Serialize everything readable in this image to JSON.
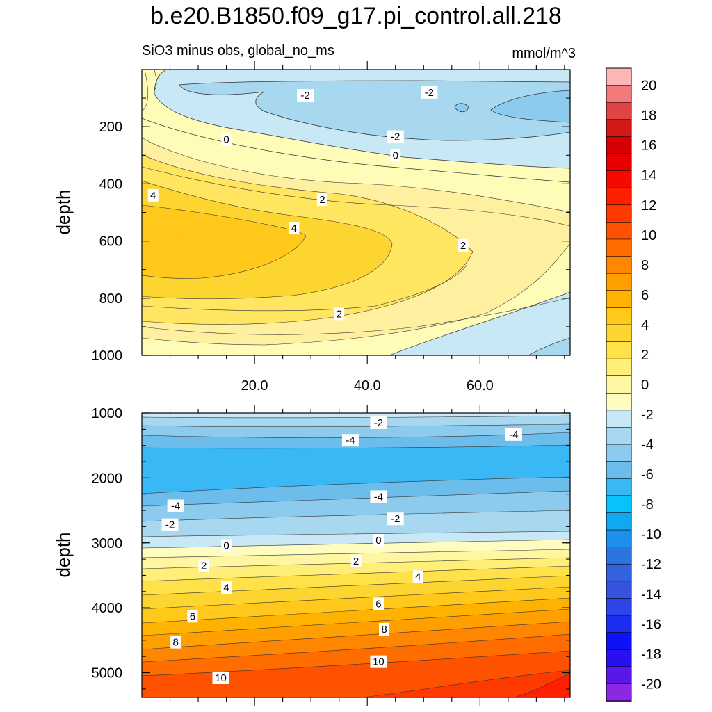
{
  "title": "b.e20.B1850.f09_g17.pi_control.all.218",
  "subtitle": "SiO3 minus obs, global_no_ms",
  "units": "mmol/m^3",
  "chart_data": [
    {
      "type": "contour",
      "panel": "upper",
      "variable": "SiO3 minus obs",
      "ylabel": "depth",
      "xlabel": "",
      "x_ticks": [
        20.0,
        40.0,
        60.0
      ],
      "x_tick_labels": [
        "20.0",
        "40.0",
        "60.0"
      ],
      "xlim": [
        0,
        76
      ],
      "ylim": [
        0,
        1000
      ],
      "y_ticks": [
        200,
        400,
        600,
        800,
        1000
      ],
      "y_tick_labels": [
        "200",
        "400",
        "600",
        "800",
        "1000"
      ],
      "contour_labels": [
        {
          "text": "-2",
          "x": 29,
          "depth": 90
        },
        {
          "text": "-2",
          "x": 51,
          "depth": 80
        },
        {
          "text": "-2",
          "x": 45,
          "depth": 235
        },
        {
          "text": "0",
          "x": 15,
          "depth": 245
        },
        {
          "text": "0",
          "x": 45,
          "depth": 300
        },
        {
          "text": "4",
          "x": 2,
          "depth": 440
        },
        {
          "text": "2",
          "x": 32,
          "depth": 455
        },
        {
          "text": "4",
          "x": 27,
          "depth": 555
        },
        {
          "text": "2",
          "x": 57,
          "depth": 615
        },
        {
          "text": "2",
          "x": 35,
          "depth": 855
        }
      ]
    },
    {
      "type": "contour",
      "panel": "lower",
      "variable": "SiO3 minus obs",
      "ylabel": "depth",
      "xlabel": "",
      "xlim": [
        0,
        76
      ],
      "ylim": [
        1000,
        5380
      ],
      "y_ticks": [
        1000,
        2000,
        3000,
        4000,
        5000
      ],
      "y_tick_labels": [
        "1000",
        "2000",
        "3000",
        "4000",
        "5000"
      ],
      "contour_labels": [
        {
          "text": "-2",
          "x": 42,
          "depth": 1150
        },
        {
          "text": "-4",
          "x": 37,
          "depth": 1420
        },
        {
          "text": "-4",
          "x": 66,
          "depth": 1330
        },
        {
          "text": "-4",
          "x": 6,
          "depth": 2430
        },
        {
          "text": "-4",
          "x": 42,
          "depth": 2290
        },
        {
          "text": "-2",
          "x": 45,
          "depth": 2630
        },
        {
          "text": "-2",
          "x": 5,
          "depth": 2720
        },
        {
          "text": "0",
          "x": 15,
          "depth": 3040
        },
        {
          "text": "0",
          "x": 42,
          "depth": 2960
        },
        {
          "text": "2",
          "x": 11,
          "depth": 3350
        },
        {
          "text": "2",
          "x": 38,
          "depth": 3280
        },
        {
          "text": "4",
          "x": 15,
          "depth": 3690
        },
        {
          "text": "4",
          "x": 49,
          "depth": 3520
        },
        {
          "text": "6",
          "x": 9,
          "depth": 4130
        },
        {
          "text": "6",
          "x": 42,
          "depth": 3940
        },
        {
          "text": "8",
          "x": 6,
          "depth": 4530
        },
        {
          "text": "8",
          "x": 43,
          "depth": 4330
        },
        {
          "text": "10",
          "x": 14,
          "depth": 5080
        },
        {
          "text": "10",
          "x": 42,
          "depth": 4830
        }
      ]
    }
  ],
  "colorbar": {
    "levels": [
      20,
      18,
      16,
      14,
      12,
      10,
      8,
      6,
      4,
      2,
      0,
      -2,
      -4,
      -6,
      -8,
      -10,
      -12,
      -14,
      -16,
      -18,
      -20
    ],
    "tick_labels": [
      "20",
      "18",
      "16",
      "14",
      "12",
      "10",
      "8",
      "6",
      "4",
      "2",
      "0",
      "-2",
      "-4",
      "-6",
      "-8",
      "-10",
      "-12",
      "-14",
      "-16",
      "-18",
      "-20"
    ],
    "colors": [
      "#FBB6B8",
      "#F27A7B",
      "#E04444",
      "#D41818",
      "#D60000",
      "#E80000",
      "#F50A00",
      "#FD2000",
      "#FE3A00",
      "#FF5200",
      "#FF6C00",
      "#FF8600",
      "#FFA000",
      "#FFB200",
      "#FFC81A",
      "#FDD530",
      "#FFE24A",
      "#FFEE78",
      "#FFF6A2",
      "#FFFCC0",
      "#C8E8F6",
      "#A8D8F0",
      "#8CCBEE",
      "#6CBCEC",
      "#3AB8F6",
      "#0AC2FA",
      "#10A8F0",
      "#1C90EA",
      "#2C74E0",
      "#3462DE",
      "#3852E0",
      "#2C44E8",
      "#1C2CF0",
      "#0E12F6",
      "#2A10F0",
      "#5A18E8",
      "#8A28E4"
    ]
  }
}
